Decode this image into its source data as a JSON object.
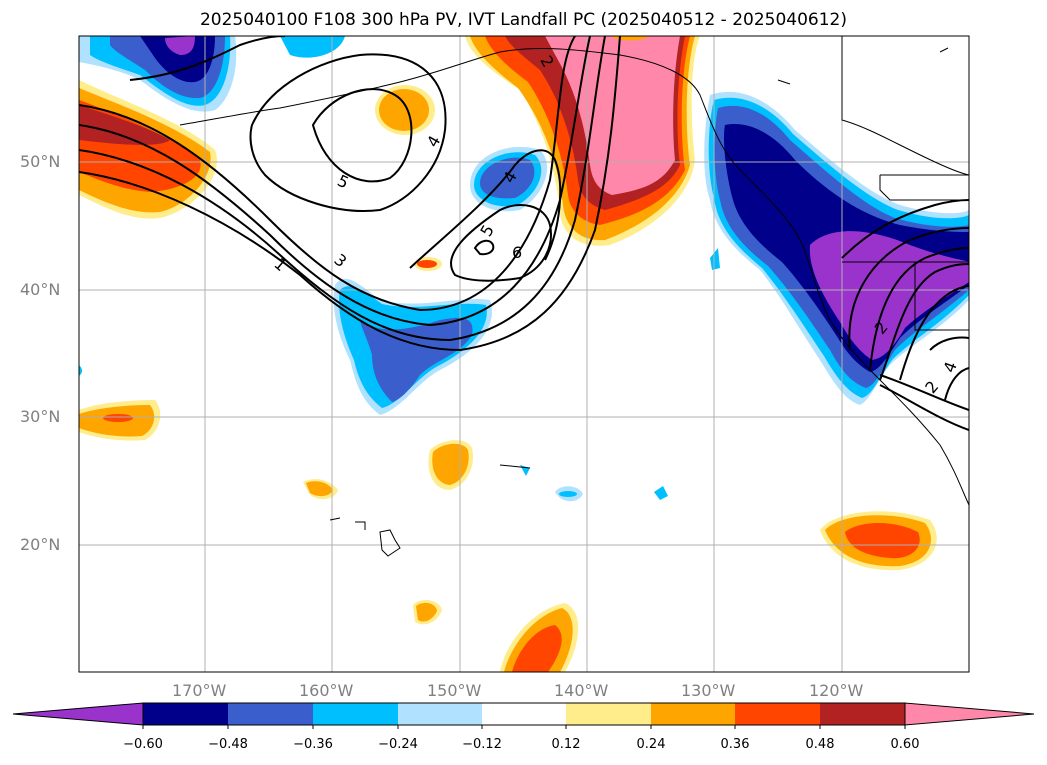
{
  "title": "2025040100 F108 300 hPa PV, IVT Landfall PC (2025040512 - 2025040612)",
  "lat_labels": [
    "50°N",
    "40°N",
    "30°N",
    "20°N"
  ],
  "lon_labels": [
    "170°W",
    "160°W",
    "150°W",
    "140°W",
    "130°W",
    "120°W"
  ],
  "contour_labels": [
    "1",
    "3",
    "4",
    "5",
    "5",
    "4",
    "2",
    "6",
    "2",
    "2",
    "4"
  ],
  "colorbar": {
    "ticks": [
      "−0.60",
      "−0.48",
      "−0.36",
      "−0.24",
      "−0.12",
      "0.12",
      "0.24",
      "0.36",
      "0.48",
      "0.60"
    ],
    "colors": [
      "#9933cc",
      "#00008b",
      "#3a5fcd",
      "#00bfff",
      "#b0e2ff",
      "#ffffff",
      "#ffec8b",
      "#ffa500",
      "#ff4500",
      "#b22222",
      "#ff88aa"
    ]
  }
}
